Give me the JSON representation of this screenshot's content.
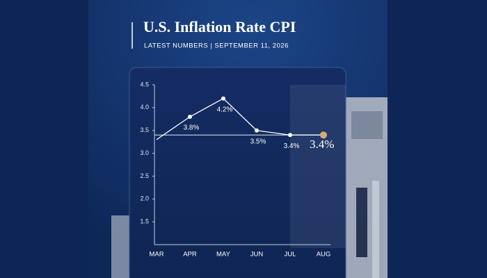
{
  "chart_data": {
    "type": "line",
    "title": "U.S. Inflation Rate CPI",
    "subtitle": "LATEST NUMBERS | SEPTEMBER 11, 2026",
    "categories": [
      "MAR",
      "APR",
      "MAY",
      "JUN",
      "JUL",
      "AUG"
    ],
    "values": [
      3.3,
      3.8,
      4.2,
      3.5,
      3.4,
      3.4
    ],
    "value_labels": [
      null,
      "3.8%",
      "4.2%",
      "3.5%",
      "3.4%",
      "3.4%"
    ],
    "color": "#ffffff",
    "highlight_color": "#d2ad78",
    "reference_line": 3.4,
    "ylim": [
      1,
      4.5
    ],
    "yticks": [
      1.5,
      {
        "value": 2,
        "label": "2.0"
      },
      2.5,
      {
        "value": 3,
        "label": "3.0"
      },
      3.5,
      {
        "value": 4,
        "label": "4.0"
      },
      4.5
    ]
  }
}
